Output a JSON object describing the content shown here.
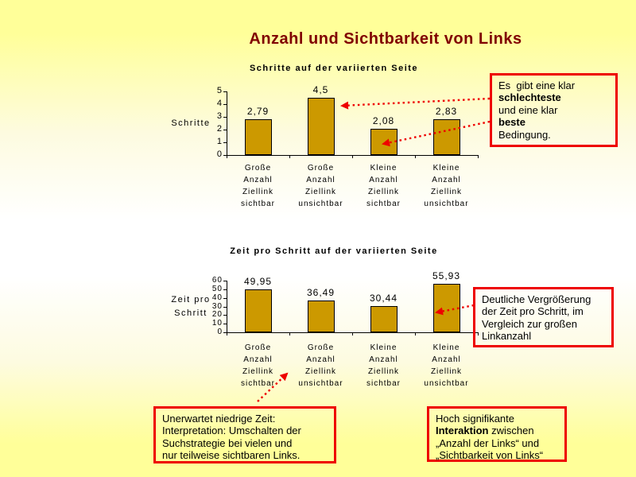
{
  "slide": {
    "title": "Anzahl und Sichtbarkeit von Links"
  },
  "colors": {
    "background_yellow": "#FFFF99",
    "background_middle": "#FFFFFF",
    "title_text": "#800000",
    "bar_fill": "#CC9900",
    "bar_border": "#000000",
    "accent_red": "#EE0000",
    "body_text": "#000000"
  },
  "chart_data": [
    {
      "type": "bar",
      "title": "Schritte auf der variierten Seite",
      "xlabel": "",
      "ylabel": "Schritte",
      "ylabel_lines": [
        "Schritte"
      ],
      "categories": [
        "Große Anzahl Ziellink sichtbar",
        "Große Anzahl Ziellink unsichtbar",
        "Kleine Anzahl Ziellink sichtbar",
        "Kleine Anzahl Ziellink unsichtbar"
      ],
      "category_lines": [
        [
          "Große",
          "Anzahl",
          "Ziellink",
          "sichtbar"
        ],
        [
          "Große",
          "Anzahl",
          "Ziellink",
          "unsichtbar"
        ],
        [
          "Kleine",
          "Anzahl",
          "Ziellink",
          "sichtbar"
        ],
        [
          "Kleine",
          "Anzahl",
          "Ziellink",
          "unsichtbar"
        ]
      ],
      "values": [
        2.79,
        4.5,
        2.08,
        2.83
      ],
      "value_labels": [
        "2,79",
        "4,5",
        "2,08",
        "2,83"
      ],
      "ylim": [
        0,
        5
      ],
      "yticks": [
        0,
        1,
        2,
        3,
        4,
        5
      ],
      "grid": false,
      "legend": "none"
    },
    {
      "type": "bar",
      "title": "Zeit pro Schritt auf der variierten Seite",
      "xlabel": "",
      "ylabel": "Zeit pro Schritt",
      "ylabel_lines": [
        "Zeit pro",
        "Schritt"
      ],
      "categories": [
        "Große Anzahl Ziellink sichtbar",
        "Große Anzahl Ziellink unsichtbar",
        "Kleine Anzahl Ziellink sichtbar",
        "Kleine Anzahl Ziellink unsichtbar"
      ],
      "category_lines": [
        [
          "Große",
          "Anzahl",
          "Ziellink",
          "sichtbar"
        ],
        [
          "Große",
          "Anzahl",
          "Ziellink",
          "unsichtbar"
        ],
        [
          "Kleine",
          "Anzahl",
          "Ziellink",
          "sichtbar"
        ],
        [
          "Kleine",
          "Anzahl",
          "Ziellink",
          "unsichtbar"
        ]
      ],
      "values": [
        49.95,
        36.49,
        30.44,
        55.93
      ],
      "value_labels": [
        "49,95",
        "36,49",
        "30,44",
        "55,93"
      ],
      "ylim": [
        0,
        60
      ],
      "yticks": [
        0,
        10,
        20,
        30,
        40,
        50,
        60
      ],
      "grid": false,
      "legend": "none"
    }
  ],
  "callouts": [
    {
      "id": "worst-best-condition",
      "lines": [
        [
          {
            "t": "Es  gibt eine klar",
            "b": false
          }
        ],
        [
          {
            "t": "schlechteste",
            "b": true
          }
        ],
        [
          {
            "t": "und eine klar",
            "b": false
          }
        ],
        [
          {
            "t": "beste",
            "b": true
          }
        ],
        [
          {
            "t": "Bedingung.",
            "b": false
          }
        ]
      ]
    },
    {
      "id": "time-increase",
      "lines": [
        [
          {
            "t": "Deutliche Vergrößerung",
            "b": false
          }
        ],
        [
          {
            "t": "der Zeit pro Schritt, im",
            "b": false
          }
        ],
        [
          {
            "t": "Vergleich zur großen",
            "b": false
          }
        ],
        [
          {
            "t": "Linkanzahl",
            "b": false
          }
        ]
      ]
    },
    {
      "id": "unexpected-low-time",
      "lines": [
        [
          {
            "t": "Unerwartet niedrige Zeit:",
            "b": false
          }
        ],
        [
          {
            "t": "Interpretation: Umschalten der",
            "b": false
          }
        ],
        [
          {
            "t": "Suchstrategie bei vielen und",
            "b": false
          }
        ],
        [
          {
            "t": "nur teilweise sichtbaren Links.",
            "b": false
          }
        ]
      ]
    },
    {
      "id": "significant-interaction",
      "lines": [
        [
          {
            "t": "Hoch signifikante",
            "b": false
          }
        ],
        [
          {
            "t": "Interaktion",
            "b": true
          },
          {
            "t": " zwischen",
            "b": false
          }
        ],
        [
          {
            "t": "„Anzahl der Links“ und",
            "b": false
          }
        ],
        [
          {
            "t": "„Sichtbarkeit von Links“",
            "b": false
          }
        ]
      ]
    }
  ]
}
